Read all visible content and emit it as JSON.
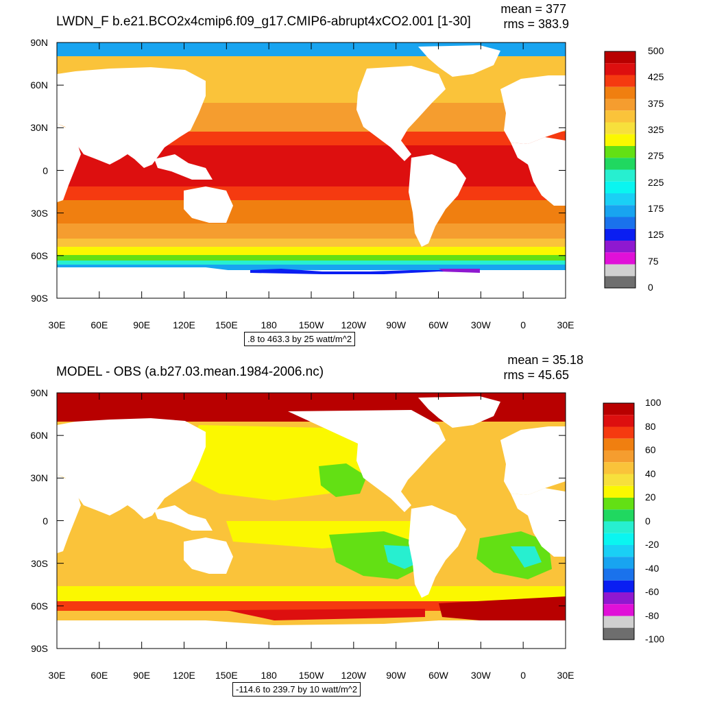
{
  "panels": [
    {
      "title": "LWDN_F b.e21.BCO2x4cmip6.f09_g17.CMIP6-abrupt4xCO2.001 [1-30]",
      "mean_label": "mean = 377",
      "rms_label": "rms = 383.9",
      "range_label": ".8 to 463.3 by 25 watt/m^2",
      "lat_ticks": [
        "90N",
        "60N",
        "30N",
        "0",
        "30S",
        "60S",
        "90S"
      ],
      "lon_ticks": [
        "30E",
        "60E",
        "90E",
        "120E",
        "150E",
        "180",
        "150W",
        "120W",
        "90W",
        "60W",
        "30W",
        "0",
        "30E"
      ],
      "colorbar": {
        "labels": [
          "500",
          "425",
          "375",
          "325",
          "275",
          "225",
          "175",
          "125",
          "75",
          "0"
        ],
        "colors": [
          "#b80000",
          "#dd0f0f",
          "#f53a10",
          "#f07f10",
          "#f59d2f",
          "#fac33a",
          "#f7e03c",
          "#fbf800",
          "#63e014",
          "#20d860",
          "#27efd0",
          "#0af5f0",
          "#1ad0f5",
          "#18a4f0",
          "#1a72ec",
          "#0a1ef2",
          "#8f18d0",
          "#e010d8",
          "#d0d0d0",
          "#6e6e6e"
        ]
      }
    },
    {
      "title": "MODEL - OBS (a.b27.03.mean.1984-2006.nc)",
      "mean_label": "mean = 35.18",
      "rms_label": "rms = 45.65",
      "range_label": "-114.6 to 239.7 by 10 watt/m^2",
      "lat_ticks": [
        "90N",
        "60N",
        "30N",
        "0",
        "30S",
        "60S",
        "90S"
      ],
      "lon_ticks": [
        "30E",
        "60E",
        "90E",
        "120E",
        "150E",
        "180",
        "150W",
        "120W",
        "90W",
        "60W",
        "30W",
        "0",
        "30E"
      ],
      "colorbar": {
        "labels": [
          "100",
          "80",
          "60",
          "40",
          "20",
          "0",
          "-20",
          "-40",
          "-60",
          "-80",
          "-100"
        ],
        "colors": [
          "#b80000",
          "#dd0f0f",
          "#f53a10",
          "#f07f10",
          "#f59d2f",
          "#fac33a",
          "#f7e03c",
          "#fbf800",
          "#63e014",
          "#20d860",
          "#27efd0",
          "#0af5f0",
          "#1ad0f5",
          "#18a4f0",
          "#1a72ec",
          "#0a1ef2",
          "#8f18d0",
          "#e010d8",
          "#d0d0d0",
          "#6e6e6e"
        ]
      }
    }
  ]
}
